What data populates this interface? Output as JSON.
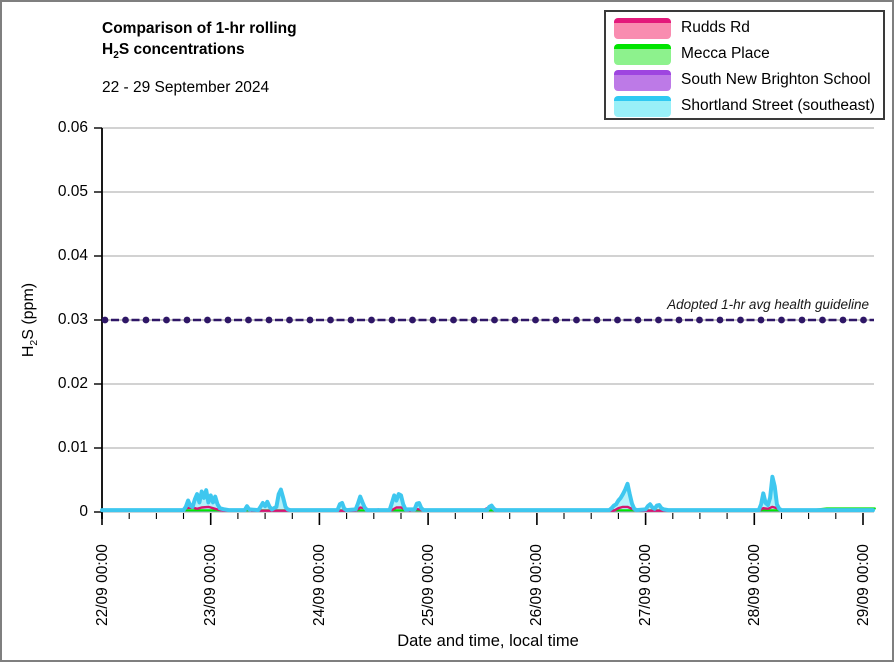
{
  "header": {
    "title_line1": "Comparison of 1-hr rolling",
    "title_line2": {
      "pre": "H",
      "sub": "2",
      "post": "S concentrations"
    },
    "subtitle": "22 - 29 September 2024"
  },
  "legend": {
    "items": [
      {
        "label": "Rudds Rd",
        "line_color": "#E3197B",
        "fill_color": "#F98CB0"
      },
      {
        "label": "Mecca Place",
        "line_color": "#00E400",
        "fill_color": "#8DF28D"
      },
      {
        "label": "South New Brighton School",
        "line_color": "#9E45E0",
        "fill_color": "#BD7AE7"
      },
      {
        "label": "Shortland Street (southeast)",
        "line_color": "#2FC9F2",
        "fill_color": "#99F0F8"
      }
    ]
  },
  "chart_data": {
    "type": "line",
    "title": "Comparison of 1-hr rolling H2S concentrations",
    "subtitle": "22 - 29 September 2024",
    "xlabel": "Date and time, local time",
    "ylabel": "H2S (ppm)",
    "ylabel_parts": {
      "pre": "H",
      "sub": "2",
      "post": "S (ppm)"
    },
    "grid_color": "#A6A6A6",
    "x_axis": {
      "range_hours": [
        0,
        168
      ],
      "major_tick_every_hours": 24,
      "minor_tick_every_hours": 6,
      "tick_labels": [
        "22/09 00:00",
        "23/09 00:00",
        "24/09 00:00",
        "25/09 00:00",
        "26/09 00:00",
        "27/09 00:00",
        "28/09 00:00",
        "29/09 00:00"
      ]
    },
    "y_axis": {
      "min": 0,
      "max": 0.06,
      "tick_step": 0.01,
      "tick_labels": [
        "0",
        "0.01",
        "0.02",
        "0.03",
        "0.04",
        "0.05",
        "0.06"
      ]
    },
    "guideline": {
      "value": 0.03,
      "label": "Adopted 1-hr avg health guideline",
      "line_color": "#2E1666",
      "base_color": "#A6A6A6"
    },
    "series": [
      {
        "name": "South New Brighton School",
        "line_color": "#9E45E0",
        "fill_color": null,
        "width": 2.2,
        "points": [
          [
            0,
            0.0002
          ],
          [
            170,
            0.0002
          ]
        ]
      },
      {
        "name": "Mecca Place",
        "line_color": "#00E400",
        "fill_color": null,
        "width": 2.2,
        "points": [
          [
            0,
            0.00025
          ],
          [
            156,
            0.00025
          ],
          [
            160,
            0.00055
          ],
          [
            170.6,
            0.00055
          ]
        ]
      },
      {
        "name": "Rudds Rd",
        "line_color": "#D5176E",
        "fill_color": "#F98CB0",
        "width": 2.4,
        "points": [
          [
            0,
            0.0002
          ],
          [
            17.5,
            0.0002
          ],
          [
            18.5,
            0.0006
          ],
          [
            20,
            0.0007
          ],
          [
            21,
            0.0005
          ],
          [
            22,
            0.0007
          ],
          [
            23.5,
            0.0008
          ],
          [
            24.5,
            0.0006
          ],
          [
            26,
            0.0003
          ],
          [
            27,
            0.0002
          ],
          [
            31,
            0.0002
          ],
          [
            32,
            0.0005
          ],
          [
            33,
            0.0002
          ],
          [
            56,
            0.0002
          ],
          [
            57,
            0.0007
          ],
          [
            58,
            0.0006
          ],
          [
            59,
            0.0003
          ],
          [
            60,
            0.0002
          ],
          [
            61,
            0.0004
          ],
          [
            62,
            0.0002
          ],
          [
            64,
            0.0003
          ],
          [
            65,
            0.0007
          ],
          [
            66,
            0.0007
          ],
          [
            67,
            0.0004
          ],
          [
            68,
            0.0002
          ],
          [
            69,
            0.0005
          ],
          [
            70,
            0.0004
          ],
          [
            71,
            0.0002
          ],
          [
            84,
            0.0002
          ],
          [
            85,
            0.0006
          ],
          [
            86,
            0.0007
          ],
          [
            87,
            0.0004
          ],
          [
            88,
            0.0002
          ],
          [
            113,
            0.0002
          ],
          [
            114,
            0.0006
          ],
          [
            115,
            0.0008
          ],
          [
            116,
            0.0008
          ],
          [
            117,
            0.0005
          ],
          [
            118,
            0.0002
          ],
          [
            145,
            0.0002
          ],
          [
            146,
            0.0006
          ],
          [
            147,
            0.0005
          ],
          [
            148,
            0.0008
          ],
          [
            149,
            0.0006
          ],
          [
            150,
            0.0002
          ],
          [
            170,
            0.0002
          ]
        ]
      },
      {
        "name": "Shortland Street (southeast)",
        "line_color": "#3EC7EF",
        "fill_color": "#B5F1F9",
        "width": 4,
        "points": [
          [
            0,
            0.0003
          ],
          [
            18,
            0.0003
          ],
          [
            18.5,
            0.0008
          ],
          [
            19,
            0.0018
          ],
          [
            19.5,
            0.001
          ],
          [
            20,
            0.0008
          ],
          [
            20.5,
            0.002
          ],
          [
            21,
            0.0028
          ],
          [
            21.5,
            0.0015
          ],
          [
            22,
            0.0032
          ],
          [
            22.5,
            0.0022
          ],
          [
            23,
            0.0034
          ],
          [
            23.5,
            0.0015
          ],
          [
            24,
            0.0026
          ],
          [
            24.5,
            0.0015
          ],
          [
            25,
            0.0024
          ],
          [
            25.5,
            0.0012
          ],
          [
            26,
            0.0006
          ],
          [
            27,
            0.0004
          ],
          [
            28,
            0.0003
          ],
          [
            31.5,
            0.0003
          ],
          [
            32,
            0.0009
          ],
          [
            32.5,
            0.0004
          ],
          [
            34.5,
            0.0003
          ],
          [
            35,
            0.0008
          ],
          [
            35.5,
            0.0014
          ],
          [
            36,
            0.0009
          ],
          [
            36.5,
            0.0016
          ],
          [
            37,
            0.0008
          ],
          [
            37.5,
            0.0004
          ],
          [
            38.5,
            0.0008
          ],
          [
            39,
            0.0028
          ],
          [
            39.5,
            0.0035
          ],
          [
            40,
            0.0022
          ],
          [
            40.5,
            0.0008
          ],
          [
            41,
            0.0004
          ],
          [
            41.5,
            0.0003
          ],
          [
            52,
            0.0003
          ],
          [
            52.5,
            0.0012
          ],
          [
            53,
            0.0014
          ],
          [
            53.5,
            0.0005
          ],
          [
            54,
            0.0003
          ],
          [
            56,
            0.0004
          ],
          [
            56.5,
            0.0013
          ],
          [
            57,
            0.0024
          ],
          [
            57.5,
            0.0015
          ],
          [
            58,
            0.0007
          ],
          [
            58.5,
            0.0003
          ],
          [
            63.5,
            0.0003
          ],
          [
            64,
            0.0014
          ],
          [
            64.5,
            0.0026
          ],
          [
            65,
            0.0018
          ],
          [
            65.5,
            0.0028
          ],
          [
            66,
            0.0026
          ],
          [
            66.5,
            0.0012
          ],
          [
            67,
            0.0004
          ],
          [
            69,
            0.0004
          ],
          [
            69.5,
            0.0013
          ],
          [
            70,
            0.0014
          ],
          [
            70.5,
            0.0006
          ],
          [
            71,
            0.0003
          ],
          [
            85,
            0.0003
          ],
          [
            85.5,
            0.0008
          ],
          [
            86,
            0.001
          ],
          [
            86.5,
            0.0005
          ],
          [
            87,
            0.0003
          ],
          [
            112,
            0.0003
          ],
          [
            112.5,
            0.0006
          ],
          [
            113,
            0.001
          ],
          [
            113.5,
            0.0012
          ],
          [
            114,
            0.0018
          ],
          [
            114.5,
            0.0022
          ],
          [
            115,
            0.0028
          ],
          [
            115.5,
            0.0035
          ],
          [
            116,
            0.0044
          ],
          [
            116.5,
            0.0028
          ],
          [
            117,
            0.0013
          ],
          [
            117.5,
            0.0005
          ],
          [
            118,
            0.0003
          ],
          [
            120,
            0.0004
          ],
          [
            120.5,
            0.0009
          ],
          [
            121,
            0.0012
          ],
          [
            121.5,
            0.0007
          ],
          [
            122,
            0.0005
          ],
          [
            122.5,
            0.001
          ],
          [
            123,
            0.0011
          ],
          [
            123.5,
            0.0006
          ],
          [
            124,
            0.0004
          ],
          [
            125,
            0.0003
          ],
          [
            145,
            0.0003
          ],
          [
            145.5,
            0.0012
          ],
          [
            146,
            0.0029
          ],
          [
            146.5,
            0.0014
          ],
          [
            147,
            0.0011
          ],
          [
            147.5,
            0.0022
          ],
          [
            148,
            0.0055
          ],
          [
            148.5,
            0.004
          ],
          [
            149,
            0.0012
          ],
          [
            149.5,
            0.0005
          ],
          [
            150,
            0.0003
          ],
          [
            170.2,
            0.0003
          ]
        ]
      }
    ]
  }
}
